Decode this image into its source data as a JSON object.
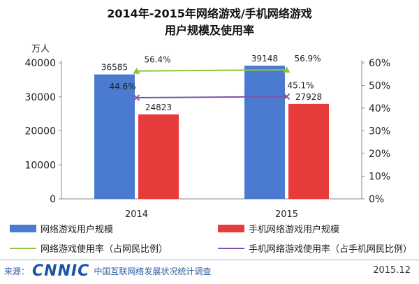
{
  "title_line1": "2014年-2015年网络游戏/手机网络游戏",
  "title_line2": "用户规模及使用率",
  "chart_data": {
    "type": "bar",
    "categories": [
      "2014",
      "2015"
    ],
    "left_axis": {
      "unit": "万人",
      "ylim": [
        0,
        40000
      ],
      "ticks": [
        "0",
        "10000",
        "20000",
        "30000",
        "40000"
      ]
    },
    "right_axis": {
      "ylim": [
        0,
        60
      ],
      "ticks": [
        "0%",
        "10%",
        "20%",
        "30%",
        "40%",
        "50%",
        "60%"
      ]
    },
    "series": [
      {
        "name": "网络游戏用户规模",
        "kind": "bar",
        "axis": "left",
        "color": "#4a7bd0",
        "values": [
          36585,
          39148
        ],
        "labels": [
          "36585",
          "39148"
        ]
      },
      {
        "name": "手机网络游戏用户规模",
        "kind": "bar",
        "axis": "left",
        "color": "#e83c3c",
        "values": [
          24823,
          27928
        ],
        "labels": [
          "24823",
          "27928"
        ]
      },
      {
        "name": "网络游戏使用率（占网民比例）",
        "kind": "line",
        "axis": "right",
        "color": "#8fc540",
        "marker": "triangle",
        "values": [
          56.4,
          56.9
        ],
        "labels": [
          "56.4%",
          "56.9%"
        ]
      },
      {
        "name": "手机网络游戏使用率（占手机网民比例）",
        "kind": "line",
        "axis": "right",
        "color": "#7a55a8",
        "marker": "x",
        "values": [
          44.6,
          45.1
        ],
        "labels": [
          "44.6%",
          "45.1%"
        ]
      }
    ],
    "grid": false,
    "legend_position": "bottom"
  },
  "footer": {
    "source_label": "来源：",
    "logo": "CNNIC",
    "org": "中国互联网络发展状况统计调查",
    "date": "2015.12"
  }
}
